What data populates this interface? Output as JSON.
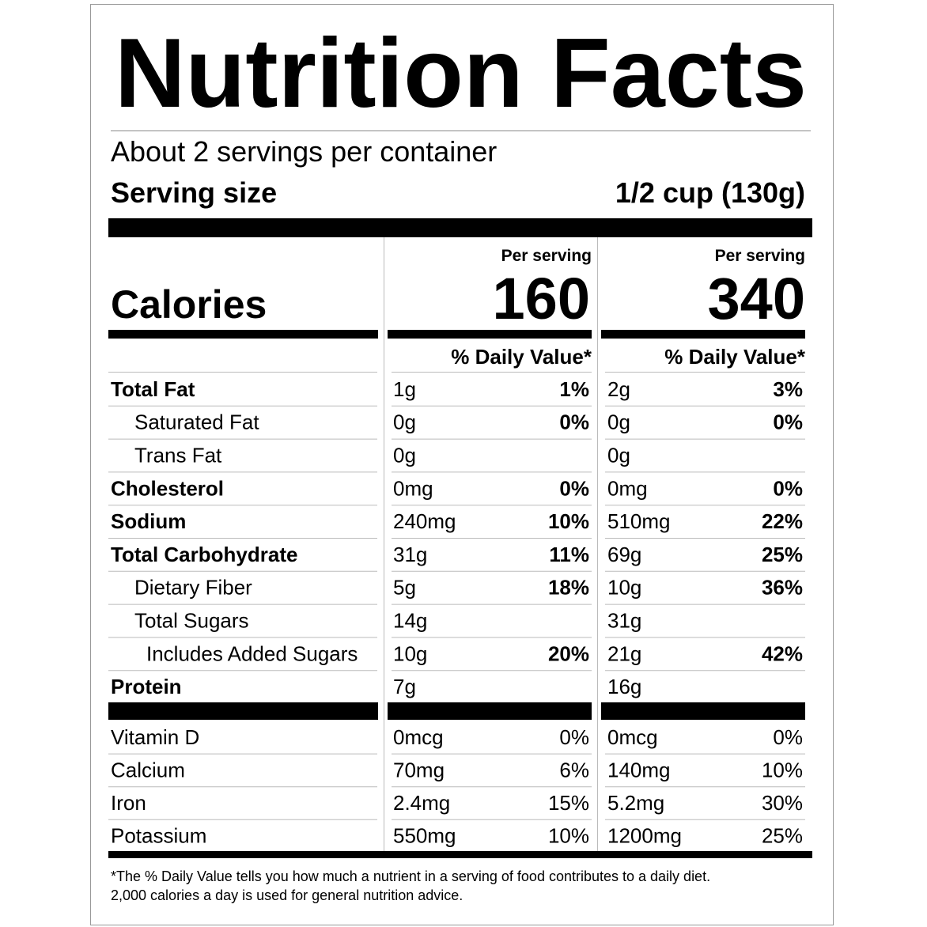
{
  "title": "Nutrition Facts",
  "servings_per_container": "About 2 servings per container",
  "serving_size": {
    "label": "Serving size",
    "value": "1/2 cup (130g)"
  },
  "calories": {
    "label": "Calories",
    "columns": [
      {
        "header": "Per serving",
        "value": 160
      },
      {
        "header": "Per serving",
        "value": 340
      }
    ]
  },
  "daily_value_header": [
    "% Daily Value*",
    "% Daily Value*"
  ],
  "nutrients": [
    {
      "name": "Total Fat",
      "bold": true,
      "indent": 0,
      "columns": [
        [
          "1g",
          "1%"
        ],
        [
          "2g",
          "3%"
        ]
      ]
    },
    {
      "name": "Saturated Fat",
      "bold": false,
      "indent": 1,
      "columns": [
        [
          "0g",
          "0%"
        ],
        [
          "0g",
          "0%"
        ]
      ]
    },
    {
      "name": "Trans Fat",
      "bold": false,
      "indent": 1,
      "columns": [
        [
          "0g",
          null
        ],
        [
          "0g",
          null
        ]
      ]
    },
    {
      "name": "Cholesterol",
      "bold": true,
      "indent": 0,
      "columns": [
        [
          "0mg",
          "0%"
        ],
        [
          "0mg",
          "0%"
        ]
      ]
    },
    {
      "name": "Sodium",
      "bold": true,
      "indent": 0,
      "columns": [
        [
          "240mg",
          "10%"
        ],
        [
          "510mg",
          "22%"
        ]
      ]
    },
    {
      "name": "Total Carbohydrate",
      "bold": true,
      "indent": 0,
      "columns": [
        [
          "31g",
          "11%"
        ],
        [
          "69g",
          "25%"
        ]
      ]
    },
    {
      "name": "Dietary Fiber",
      "bold": false,
      "indent": 1,
      "columns": [
        [
          "5g",
          "18%"
        ],
        [
          "10g",
          "36%"
        ]
      ]
    },
    {
      "name": "Total Sugars",
      "bold": false,
      "indent": 1,
      "columns": [
        [
          "14g",
          null
        ],
        [
          "31g",
          null
        ]
      ]
    },
    {
      "name": "Includes Added Sugars",
      "bold": false,
      "indent": 2,
      "columns": [
        [
          "10g",
          "20%"
        ],
        [
          "21g",
          "42%"
        ]
      ]
    },
    {
      "name": "Protein",
      "bold": true,
      "indent": 0,
      "columns": [
        [
          "7g",
          null
        ],
        [
          "16g",
          null
        ]
      ]
    }
  ],
  "vitamins": [
    {
      "name": "Vitamin D",
      "columns": [
        [
          "0mcg",
          "0%"
        ],
        [
          "0mcg",
          "0%"
        ]
      ]
    },
    {
      "name": "Calcium",
      "columns": [
        [
          "70mg",
          "6%"
        ],
        [
          "140mg",
          "10%"
        ]
      ]
    },
    {
      "name": "Iron",
      "columns": [
        [
          "2.4mg",
          "15%"
        ],
        [
          "5.2mg",
          "30%"
        ]
      ]
    },
    {
      "name": "Potassium",
      "columns": [
        [
          "550mg",
          "10%"
        ],
        [
          "1200mg",
          "25%"
        ]
      ]
    }
  ],
  "footnote": [
    "*The % Daily Value tells you how much a nutrient in a serving of food contributes to a daily diet.",
    "2,000 calories a day is used for general nutrition advice."
  ]
}
